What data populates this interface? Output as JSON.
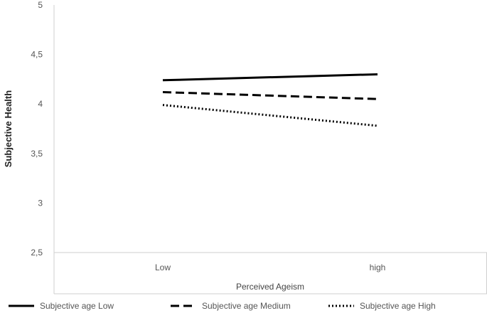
{
  "chart_data": {
    "type": "line",
    "title": "",
    "xlabel": "Perceived Ageism",
    "ylabel": "Subjective Health",
    "categories": [
      "Low",
      "high"
    ],
    "ylim": [
      2.5,
      5
    ],
    "yticks": [
      2.5,
      3,
      3.5,
      4,
      4.5,
      5
    ],
    "ytick_labels": [
      "2,5",
      "3",
      "3,5",
      "4",
      "4,5",
      "5"
    ],
    "grid": false,
    "legend_position": "bottom",
    "series": [
      {
        "name": "Subjective age Low",
        "values": [
          4.24,
          4.3
        ],
        "style": "solid",
        "color": "#000000"
      },
      {
        "name": "Subjective age Medium",
        "values": [
          4.12,
          4.05
        ],
        "style": "dashed",
        "color": "#000000"
      },
      {
        "name": "Subjective age High",
        "values": [
          3.99,
          3.78
        ],
        "style": "dotted",
        "color": "#000000"
      }
    ]
  }
}
